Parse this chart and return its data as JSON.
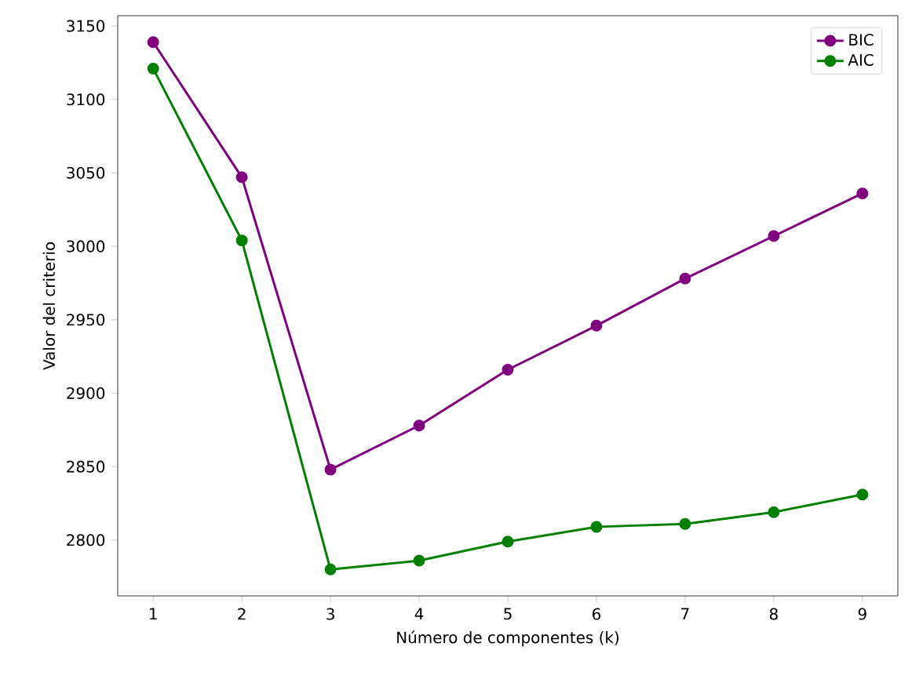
{
  "chart_data": {
    "type": "line",
    "xlabel": "Número de componentes (k)",
    "ylabel": "Valor del criterio",
    "x": [
      1,
      2,
      3,
      4,
      5,
      6,
      7,
      8,
      9
    ],
    "series": [
      {
        "name": "BIC",
        "color": "#800080",
        "values": [
          3139,
          3047,
          2848,
          2878,
          2916,
          2946,
          2978,
          3007,
          3036
        ]
      },
      {
        "name": "AIC",
        "color": "#008000",
        "values": [
          3121,
          3004,
          2780,
          2786,
          2799,
          2809,
          2811,
          2819,
          2831
        ]
      }
    ],
    "xlim": [
      0.6,
      9.4
    ],
    "ylim": [
      2762,
      3157
    ],
    "xticks": [
      1,
      2,
      3,
      4,
      5,
      6,
      7,
      8,
      9
    ],
    "yticks": [
      2800,
      2850,
      2900,
      2950,
      3000,
      3050,
      3100,
      3150
    ],
    "legend": "top right",
    "marker": "circle",
    "line_style": "solid",
    "grid": false
  }
}
